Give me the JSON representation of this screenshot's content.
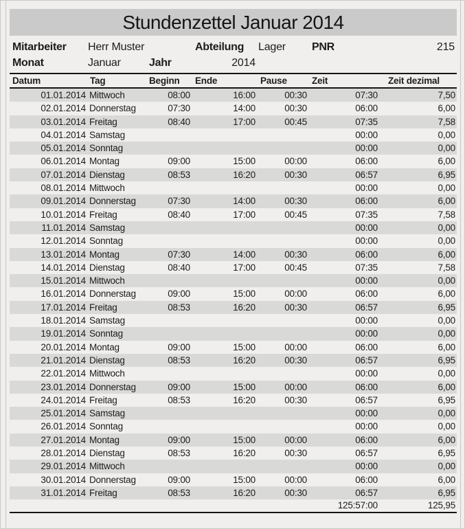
{
  "title": "Stundenzettel Januar 2014",
  "info": {
    "mitarbeiter_label": "Mitarbeiter",
    "mitarbeiter_value": "Herr Muster",
    "abteilung_label": "Abteilung",
    "abteilung_value": "Lager",
    "pnr_label": "PNR",
    "pnr_value": "215",
    "monat_label": "Monat",
    "monat_value": "Januar",
    "jahr_label": "Jahr",
    "jahr_value": "2014"
  },
  "table": {
    "columns": [
      "Datum",
      "Tag",
      "Beginn",
      "Ende",
      "Pause",
      "Zeit",
      "Zeit dezimal"
    ],
    "rows": [
      {
        "date": "01.01.2014",
        "day": "Mittwoch",
        "begin": "08:00",
        "end": "16:00",
        "pause": "00:30",
        "zeit": "07:30",
        "dez": "7,50"
      },
      {
        "date": "02.01.2014",
        "day": "Donnerstag",
        "begin": "07:30",
        "end": "14:00",
        "pause": "00:30",
        "zeit": "06:00",
        "dez": "6,00"
      },
      {
        "date": "03.01.2014",
        "day": "Freitag",
        "begin": "08:40",
        "end": "17:00",
        "pause": "00:45",
        "zeit": "07:35",
        "dez": "7,58"
      },
      {
        "date": "04.01.2014",
        "day": "Samstag",
        "begin": "",
        "end": "",
        "pause": "",
        "zeit": "00:00",
        "dez": "0,00"
      },
      {
        "date": "05.01.2014",
        "day": "Sonntag",
        "begin": "",
        "end": "",
        "pause": "",
        "zeit": "00:00",
        "dez": "0,00"
      },
      {
        "date": "06.01.2014",
        "day": "Montag",
        "begin": "09:00",
        "end": "15:00",
        "pause": "00:00",
        "zeit": "06:00",
        "dez": "6,00"
      },
      {
        "date": "07.01.2014",
        "day": "Dienstag",
        "begin": "08:53",
        "end": "16:20",
        "pause": "00:30",
        "zeit": "06:57",
        "dez": "6,95"
      },
      {
        "date": "08.01.2014",
        "day": "Mittwoch",
        "begin": "",
        "end": "",
        "pause": "",
        "zeit": "00:00",
        "dez": "0,00"
      },
      {
        "date": "09.01.2014",
        "day": "Donnerstag",
        "begin": "07:30",
        "end": "14:00",
        "pause": "00:30",
        "zeit": "06:00",
        "dez": "6,00"
      },
      {
        "date": "10.01.2014",
        "day": "Freitag",
        "begin": "08:40",
        "end": "17:00",
        "pause": "00:45",
        "zeit": "07:35",
        "dez": "7,58"
      },
      {
        "date": "11.01.2014",
        "day": "Samstag",
        "begin": "",
        "end": "",
        "pause": "",
        "zeit": "00:00",
        "dez": "0,00"
      },
      {
        "date": "12.01.2014",
        "day": "Sonntag",
        "begin": "",
        "end": "",
        "pause": "",
        "zeit": "00:00",
        "dez": "0,00"
      },
      {
        "date": "13.01.2014",
        "day": "Montag",
        "begin": "07:30",
        "end": "14:00",
        "pause": "00:30",
        "zeit": "06:00",
        "dez": "6,00"
      },
      {
        "date": "14.01.2014",
        "day": "Dienstag",
        "begin": "08:40",
        "end": "17:00",
        "pause": "00:45",
        "zeit": "07:35",
        "dez": "7,58"
      },
      {
        "date": "15.01.2014",
        "day": "Mittwoch",
        "begin": "",
        "end": "",
        "pause": "",
        "zeit": "00:00",
        "dez": "0,00"
      },
      {
        "date": "16.01.2014",
        "day": "Donnerstag",
        "begin": "09:00",
        "end": "15:00",
        "pause": "00:00",
        "zeit": "06:00",
        "dez": "6,00"
      },
      {
        "date": "17.01.2014",
        "day": "Freitag",
        "begin": "08:53",
        "end": "16:20",
        "pause": "00:30",
        "zeit": "06:57",
        "dez": "6,95"
      },
      {
        "date": "18.01.2014",
        "day": "Samstag",
        "begin": "",
        "end": "",
        "pause": "",
        "zeit": "00:00",
        "dez": "0,00"
      },
      {
        "date": "19.01.2014",
        "day": "Sonntag",
        "begin": "",
        "end": "",
        "pause": "",
        "zeit": "00:00",
        "dez": "0,00"
      },
      {
        "date": "20.01.2014",
        "day": "Montag",
        "begin": "09:00",
        "end": "15:00",
        "pause": "00:00",
        "zeit": "06:00",
        "dez": "6,00"
      },
      {
        "date": "21.01.2014",
        "day": "Dienstag",
        "begin": "08:53",
        "end": "16:20",
        "pause": "00:30",
        "zeit": "06:57",
        "dez": "6,95"
      },
      {
        "date": "22.01.2014",
        "day": "Mittwoch",
        "begin": "",
        "end": "",
        "pause": "",
        "zeit": "00:00",
        "dez": "0,00"
      },
      {
        "date": "23.01.2014",
        "day": "Donnerstag",
        "begin": "09:00",
        "end": "15:00",
        "pause": "00:00",
        "zeit": "06:00",
        "dez": "6,00"
      },
      {
        "date": "24.01.2014",
        "day": "Freitag",
        "begin": "08:53",
        "end": "16:20",
        "pause": "00:30",
        "zeit": "06:57",
        "dez": "6,95"
      },
      {
        "date": "25.01.2014",
        "day": "Samstag",
        "begin": "",
        "end": "",
        "pause": "",
        "zeit": "00:00",
        "dez": "0,00"
      },
      {
        "date": "26.01.2014",
        "day": "Sonntag",
        "begin": "",
        "end": "",
        "pause": "",
        "zeit": "00:00",
        "dez": "0,00"
      },
      {
        "date": "27.01.2014",
        "day": "Montag",
        "begin": "09:00",
        "end": "15:00",
        "pause": "00:00",
        "zeit": "06:00",
        "dez": "6,00"
      },
      {
        "date": "28.01.2014",
        "day": "Dienstag",
        "begin": "08:53",
        "end": "16:20",
        "pause": "00:30",
        "zeit": "06:57",
        "dez": "6,95"
      },
      {
        "date": "29.01.2014",
        "day": "Mittwoch",
        "begin": "",
        "end": "",
        "pause": "",
        "zeit": "00:00",
        "dez": "0,00"
      },
      {
        "date": "30.01.2014",
        "day": "Donnerstag",
        "begin": "09:00",
        "end": "15:00",
        "pause": "00:00",
        "zeit": "06:00",
        "dez": "6,00"
      },
      {
        "date": "31.01.2014",
        "day": "Freitag",
        "begin": "08:53",
        "end": "16:20",
        "pause": "00:30",
        "zeit": "06:57",
        "dez": "6,95"
      }
    ],
    "total": {
      "zeit": "125:57:00",
      "dez": "125,95"
    }
  },
  "colors": {
    "page_bg": "#f0efed",
    "title_bg": "#cacaca",
    "row_shaded": "#d9d9d8",
    "rule": "#151515",
    "text": "#1d1c1a"
  }
}
